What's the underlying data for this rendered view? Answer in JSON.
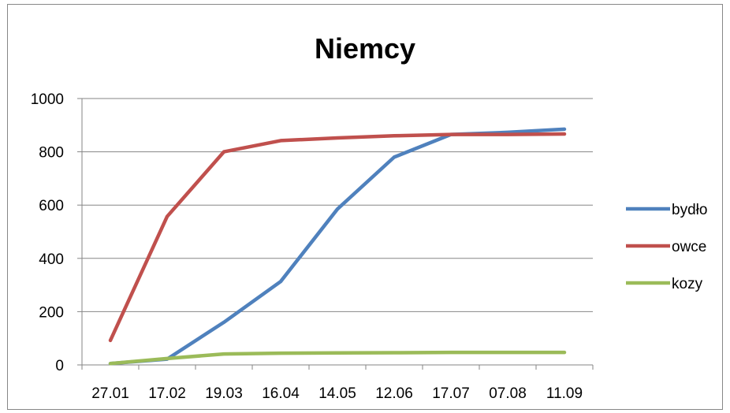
{
  "chart_data": {
    "type": "line",
    "title": "Niemcy",
    "xlabel": "",
    "ylabel": "",
    "categories": [
      "27.01",
      "17.02",
      "19.03",
      "16.04",
      "14.05",
      "12.06",
      "17.07",
      "07.08",
      "11.09"
    ],
    "ylim": [
      0,
      1000
    ],
    "yticks": [
      0,
      200,
      400,
      600,
      800,
      1000
    ],
    "grid": true,
    "legend_position": "right",
    "series": [
      {
        "name": "bydło",
        "color": "#4F81BD",
        "values": [
          5,
          22,
          160,
          313,
          585,
          780,
          865,
          873,
          885
        ]
      },
      {
        "name": "owce",
        "color": "#C0504D",
        "values": [
          92,
          557,
          800,
          842,
          852,
          860,
          865,
          865,
          867
        ]
      },
      {
        "name": "kozy",
        "color": "#9BBB59",
        "values": [
          5,
          24,
          41,
          44,
          45,
          46,
          47,
          47,
          47
        ]
      }
    ]
  }
}
